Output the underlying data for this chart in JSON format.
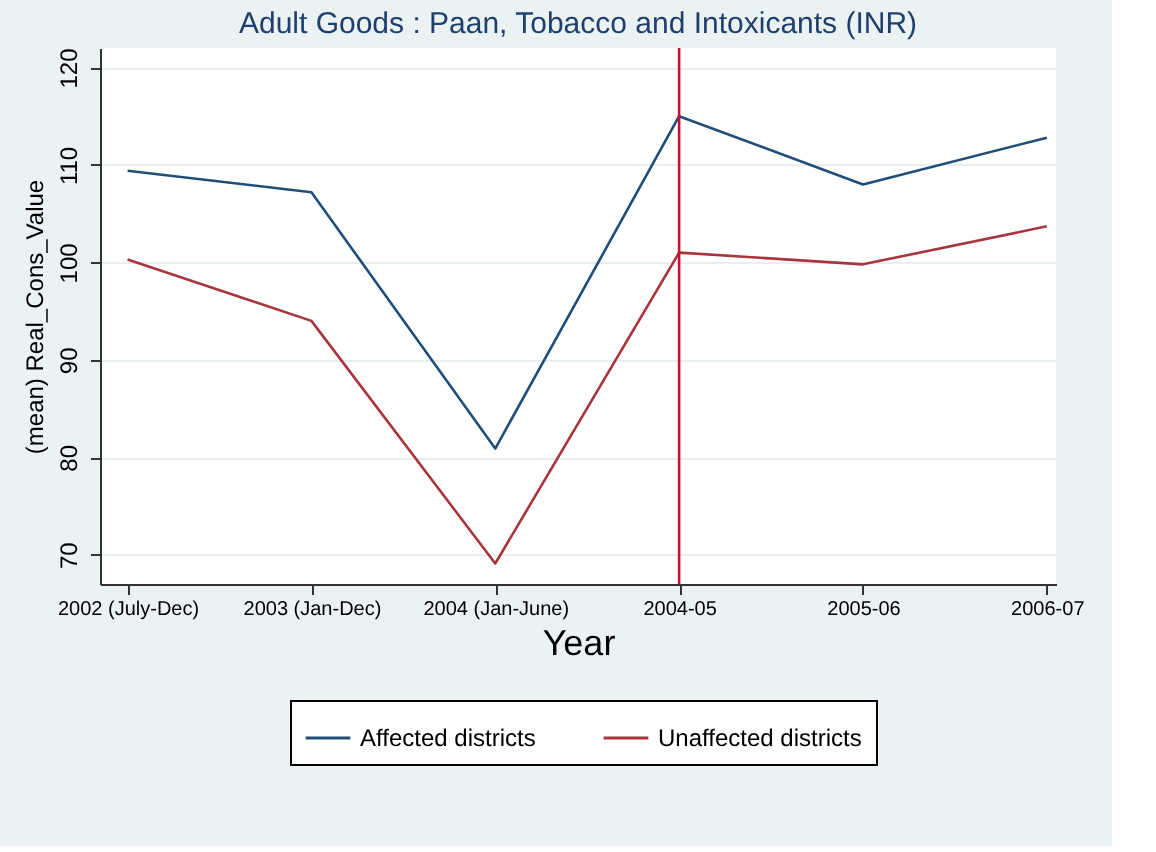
{
  "chart_data": {
    "type": "line",
    "title": "Adult Goods : Paan, Tobacco and Intoxicants (INR)",
    "xlabel": "Year",
    "ylabel": "(mean) Real_Cons_Value",
    "categories": [
      "2002 (July-Dec)",
      "2003 (Jan-Dec)",
      "2004 (Jan-June)",
      "2004-05",
      "2005-06",
      "2006-07"
    ],
    "series": [
      {
        "name": "Affected districts",
        "color": "#1f4e79",
        "values": [
          109.4,
          107.2,
          80.9,
          115,
          108,
          112.8
        ]
      },
      {
        "name": "Unaffected districts",
        "color": "#a8353e",
        "values": [
          100.3,
          94,
          69.1,
          101,
          99.8,
          103.7
        ]
      }
    ],
    "ylim": [
      67,
      122
    ],
    "yticks": [
      70,
      80,
      90,
      100,
      110,
      120
    ],
    "grid": "y",
    "legend": "bottom",
    "marker": "none",
    "line_style": "solid",
    "ref_lines": [
      {
        "axis": "x",
        "value": "2004-05",
        "color": "#c8102e"
      }
    ]
  }
}
